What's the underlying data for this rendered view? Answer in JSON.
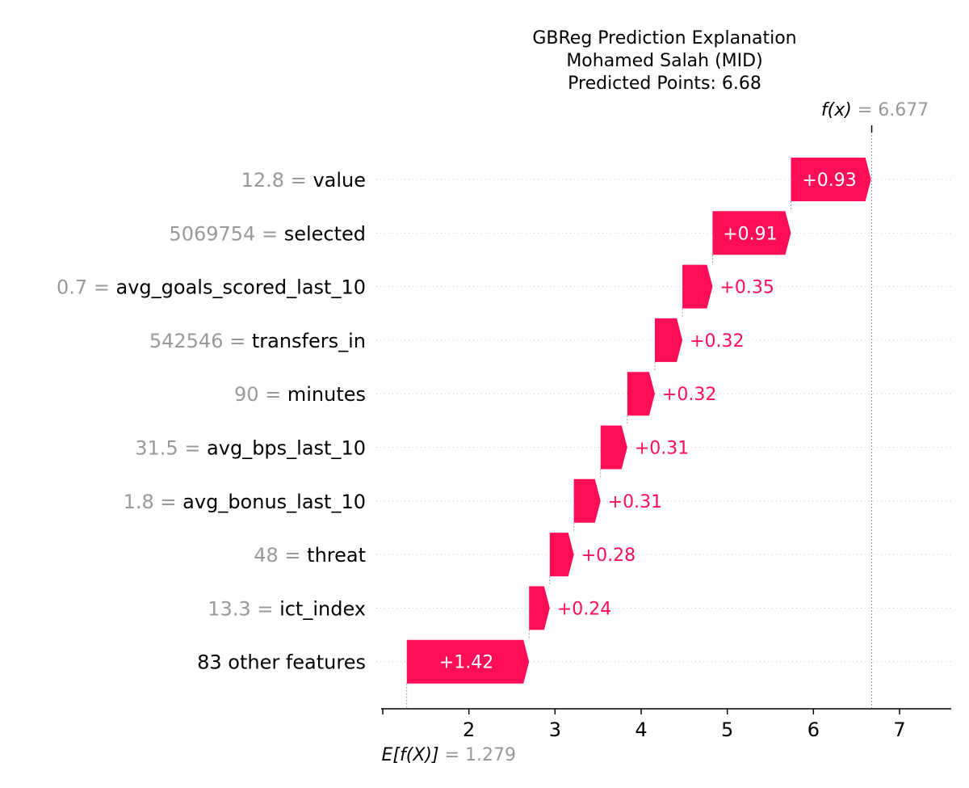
{
  "chart_data": {
    "type": "waterfall",
    "title_lines": [
      "GBReg Prediction Explanation",
      "Mohamed Salah (MID)",
      "Predicted Points: 6.68"
    ],
    "base_value": 1.279,
    "base_value_label": "= 1.279",
    "base_value_symbol": "E[f(X)]",
    "output_value": 6.677,
    "output_value_label": "= 6.677",
    "output_value_symbol": "f(x)",
    "xlim": [
      1,
      7.6
    ],
    "x_ticks": [
      1,
      2,
      3,
      4,
      5,
      6,
      7
    ],
    "x_tick_labels": [
      "",
      "2",
      "3",
      "4",
      "5",
      "6",
      "7"
    ],
    "positive_color": "#ff0d57",
    "features": [
      {
        "value": "12.8",
        "name": "value",
        "contribution": 0.93,
        "label": "+0.93"
      },
      {
        "value": "5069754",
        "name": "selected",
        "contribution": 0.91,
        "label": "+0.91"
      },
      {
        "value": "0.7",
        "name": "avg_goals_scored_last_10",
        "contribution": 0.35,
        "label": "+0.35"
      },
      {
        "value": "542546",
        "name": "transfers_in",
        "contribution": 0.32,
        "label": "+0.32"
      },
      {
        "value": "90",
        "name": "minutes",
        "contribution": 0.32,
        "label": "+0.32"
      },
      {
        "value": "31.5",
        "name": "avg_bps_last_10",
        "contribution": 0.31,
        "label": "+0.31"
      },
      {
        "value": "1.8",
        "name": "avg_bonus_last_10",
        "contribution": 0.31,
        "label": "+0.31"
      },
      {
        "value": "48",
        "name": "threat",
        "contribution": 0.28,
        "label": "+0.28"
      },
      {
        "value": "13.3",
        "name": "ict_index",
        "contribution": 0.24,
        "label": "+0.24"
      },
      {
        "value": "",
        "name": "83 other features",
        "contribution": 1.42,
        "label": "+1.42"
      }
    ]
  }
}
